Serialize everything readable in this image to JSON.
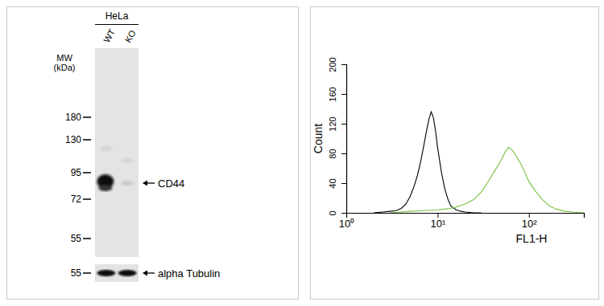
{
  "blot": {
    "cell_line": "HeLa",
    "lanes": [
      "WT",
      "KO"
    ],
    "mw_label": [
      "MW",
      "(kDa)"
    ],
    "markers": [
      180,
      130,
      95,
      72,
      55
    ],
    "bands": [
      {
        "label": "CD44"
      }
    ],
    "loading_control": {
      "label": "alpha Tubulin",
      "marker": 55
    }
  },
  "chart_data": {
    "type": "line",
    "xlabel": "FL1-H",
    "ylabel": "Count",
    "log": "x",
    "xlim": [
      1,
      400
    ],
    "xticks": [
      {
        "value": 1,
        "label": "10⁰"
      },
      {
        "value": 10,
        "label": "10¹"
      },
      {
        "value": 100,
        "label": "10²"
      }
    ],
    "ylim": [
      0,
      200
    ],
    "yticks": [
      0,
      40,
      80,
      120,
      160,
      200
    ],
    "series": [
      {
        "color": "#000000",
        "x": [
          2,
          2.5,
          3,
          3.5,
          4,
          4.5,
          5,
          5.5,
          6,
          6.5,
          7,
          7.5,
          8,
          8.5,
          9,
          9.5,
          10,
          11,
          12,
          13,
          14,
          16,
          18,
          20,
          25,
          30
        ],
        "values": [
          0,
          1,
          2,
          3,
          6,
          12,
          22,
          35,
          50,
          68,
          88,
          108,
          125,
          136,
          128,
          110,
          88,
          55,
          32,
          18,
          9,
          4,
          2,
          1,
          0,
          0
        ]
      },
      {
        "color": "#7ac143",
        "x": [
          3,
          5,
          7,
          10,
          12,
          14,
          16,
          18,
          20,
          25,
          30,
          35,
          40,
          45,
          50,
          55,
          60,
          65,
          70,
          80,
          90,
          100,
          120,
          140,
          170,
          200,
          250,
          300,
          400
        ],
        "values": [
          0,
          2,
          3,
          4,
          5,
          6,
          8,
          10,
          12,
          18,
          28,
          40,
          52,
          62,
          72,
          82,
          88,
          85,
          80,
          68,
          55,
          42,
          28,
          18,
          9,
          5,
          2,
          1,
          0
        ]
      }
    ]
  }
}
